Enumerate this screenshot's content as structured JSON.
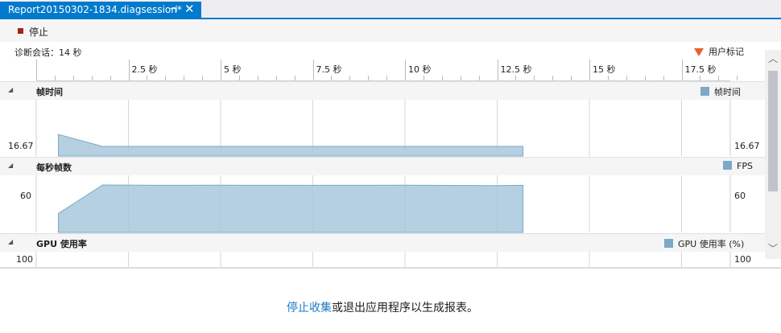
{
  "tab": {
    "title": "Report20150302-1834.diagsession*",
    "pin_glyph": "⊣",
    "close_glyph": "✕"
  },
  "toolbar": {
    "stop_label": "停止"
  },
  "timeline": {
    "session_label": "诊断会话：14 秒",
    "ticks": [
      "2.5 秒",
      "5 秒",
      "7.5 秒",
      "10 秒",
      "12.5 秒",
      "15 秒",
      "17.5 秒"
    ],
    "user_marker_label": "用户标记"
  },
  "sections": {
    "frame_time": {
      "name": "帧时间",
      "legend": "帧时间",
      "axis_value": "16.67"
    },
    "fps": {
      "name": "每秒帧数",
      "legend": "FPS",
      "axis_value": "60"
    },
    "gpu": {
      "name": "GPU 使用率",
      "legend": "GPU 使用率 (%)",
      "axis_value": "100"
    }
  },
  "colors": {
    "accent": "#007acc",
    "series_fill": "#a8c8dc",
    "series_stroke": "#7ba9c7",
    "marker": "#e8622c"
  },
  "message": {
    "link_text": "停止收集",
    "rest_text": "或退出应用程序以生成报表。"
  },
  "chart_data": [
    {
      "type": "area",
      "title": "帧时间",
      "x_unit": "秒",
      "x": [
        0.6,
        1.8,
        13.2
      ],
      "y_description": "frame time near the 16.67 reference line",
      "y": [
        17.6,
        16.67,
        16.67
      ],
      "reference": 16.67,
      "series": [
        {
          "name": "帧时间",
          "values": [
            17.6,
            16.67,
            16.67
          ]
        }
      ]
    },
    {
      "type": "area",
      "title": "每秒帧数",
      "x_unit": "秒",
      "x": [
        0.6,
        1.8,
        3.5,
        5,
        7,
        10,
        12.5,
        13.2
      ],
      "reference": 60,
      "series": [
        {
          "name": "FPS",
          "values": [
            24,
            60,
            59.6,
            59.8,
            59.6,
            59.8,
            59.3,
            59.6
          ]
        }
      ]
    },
    {
      "type": "area",
      "title": "GPU 使用率",
      "reference": 100,
      "series": [
        {
          "name": "GPU 使用率 (%)",
          "values": []
        }
      ]
    }
  ]
}
